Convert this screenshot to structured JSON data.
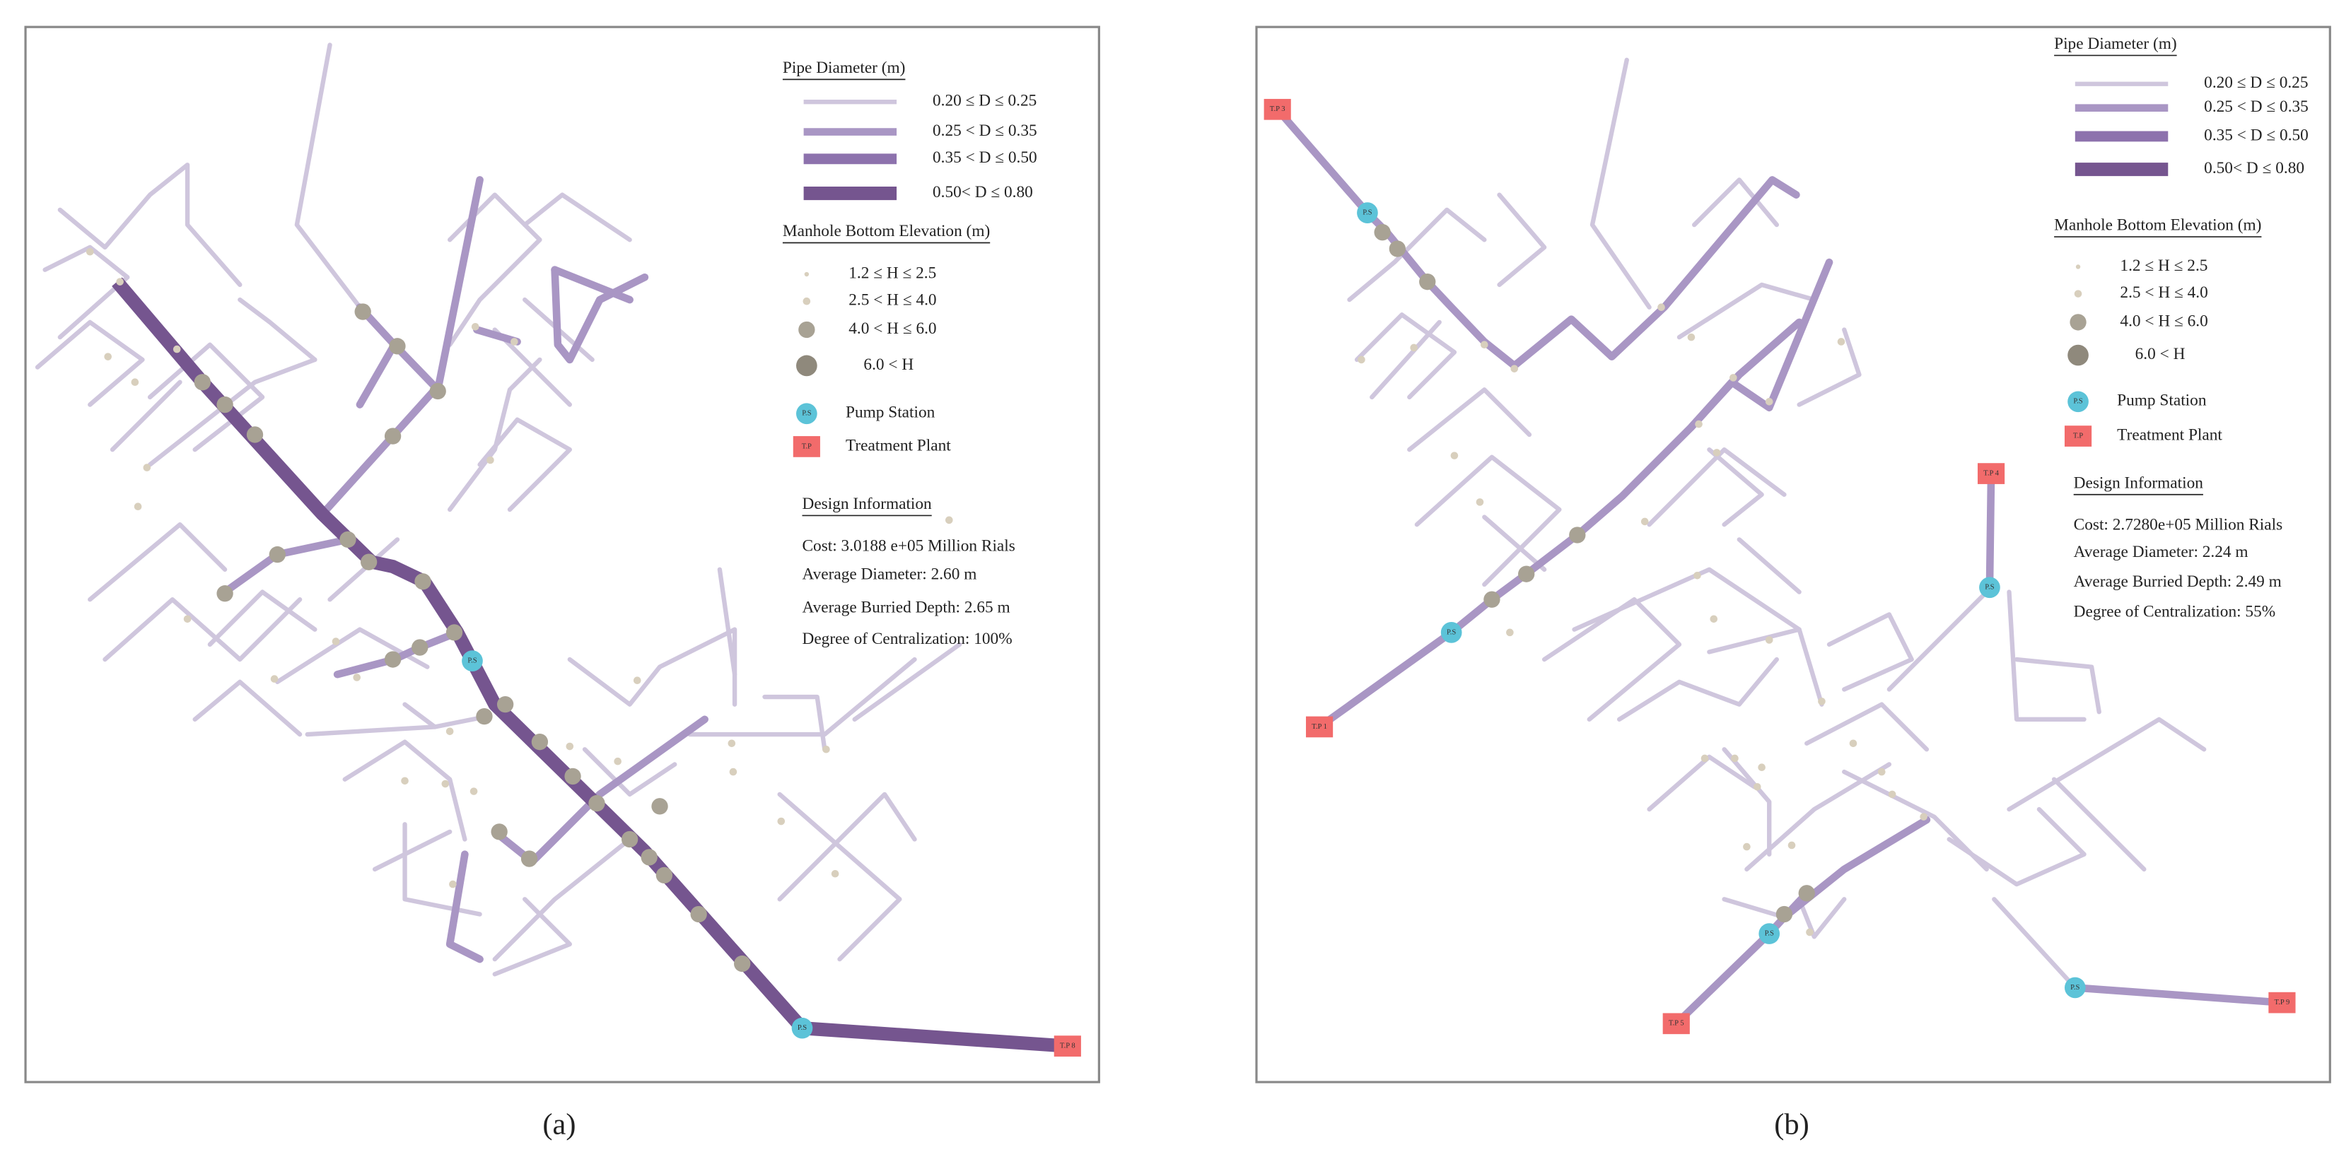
{
  "panels": [
    {
      "label": "(a)",
      "legend": {
        "pipe_title": "Pipe Diameter (m)",
        "pipe_classes": [
          "0.20 ≤ D ≤ 0.25",
          "0.25 < D ≤ 0.35",
          "0.35 < D ≤ 0.50",
          "0.50< D ≤ 0.80"
        ],
        "manhole_title": "Manhole Bottom Elevation (m)",
        "manhole_classes": [
          "1.2 ≤ H ≤ 2.5",
          "2.5 < H ≤ 4.0",
          "4.0 < H ≤ 6.0",
          "6.0 < H"
        ],
        "pump_icon": "P.S",
        "pump_station": "Pump Station",
        "plant_icon": "T.P",
        "treatment_plant": "Treatment Plant",
        "design_title": "Design Information",
        "design_lines": [
          "Cost: 3.0188 e+05 Million Rials",
          "Average Diameter:  2.60 m",
          "Average Burried Depth:  2.65 m",
          "Degree of Centralization: 100%"
        ]
      },
      "pump_stations": [
        "P.S",
        "P.S"
      ],
      "treatment_plants": [
        "T.P 8"
      ]
    },
    {
      "label": "(b)",
      "legend": {
        "pipe_title": "Pipe Diameter (m)",
        "pipe_classes": [
          "0.20 ≤ D ≤ 0.25",
          "0.25 < D ≤ 0.35",
          "0.35 < D ≤ 0.50",
          "0.50< D ≤ 0.80"
        ],
        "manhole_title": "Manhole Bottom Elevation (m)",
        "manhole_classes": [
          "1.2 ≤ H ≤ 2.5",
          "2.5 < H ≤ 4.0",
          "4.0 < H ≤ 6.0",
          "6.0 < H"
        ],
        "pump_icon": "P.S",
        "pump_station": "Pump Station",
        "plant_icon": "T.P",
        "treatment_plant": "Treatment Plant",
        "design_title": "Design Information",
        "design_lines": [
          "Cost: 2.7280e+05 Million Rials",
          "Average Diameter:  2.24 m",
          "Average Burried Depth:  2.49 m",
          "Degree of Centralization: 55%"
        ]
      },
      "pump_stations": [
        "P.S",
        "P.S",
        "P.S",
        "P.S",
        "P.S"
      ],
      "treatment_plants": [
        "T.P 3",
        "T.P 1",
        "T.P 4",
        "T.P 5",
        "T.P 9"
      ]
    }
  ]
}
